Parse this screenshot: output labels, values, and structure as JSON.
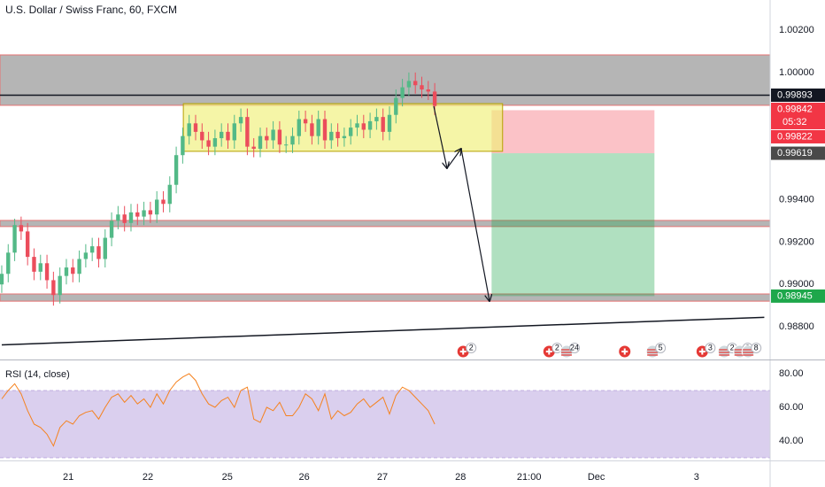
{
  "chart_data": {
    "type": "candlestick",
    "title": "U.S. Dollar / Swiss Franc, 60, FXCM",
    "xlim": [
      -0.27,
      118.9
    ],
    "xticks": [
      {
        "value": 10.3,
        "label": "21"
      },
      {
        "value": 22.6,
        "label": "22"
      },
      {
        "value": 34.9,
        "label": "25"
      },
      {
        "value": 46.8,
        "label": "26"
      },
      {
        "value": 58.9,
        "label": "27"
      },
      {
        "value": 71,
        "label": "28"
      },
      {
        "value": 81.6,
        "label": "21:00"
      },
      {
        "value": 92,
        "label": "Dec"
      },
      {
        "value": 107.5,
        "label": "3"
      }
    ],
    "ylim": [
      0.9865,
      1.00342
    ],
    "yticks": [
      {
        "value": 1.002,
        "label": "1.00200"
      },
      {
        "value": 1.0,
        "label": "1.00000"
      },
      {
        "value": 0.994,
        "label": "0.99400"
      },
      {
        "value": 0.992,
        "label": "0.99200"
      },
      {
        "value": 0.99,
        "label": "0.99000"
      },
      {
        "value": 0.988,
        "label": "0.98800"
      }
    ],
    "up_color": "#53b987",
    "down_color": "#eb4d5c",
    "open": [
      0.99,
      0.9905,
      0.9915,
      0.9928,
      0.9925,
      0.9913,
      0.9906,
      0.991,
      0.9902,
      0.9895,
      0.9904,
      0.9908,
      0.9905,
      0.9912,
      0.9915,
      0.9918,
      0.9912,
      0.9922,
      0.993,
      0.9933,
      0.9929,
      0.9934,
      0.9932,
      0.9935,
      0.9933,
      0.994,
      0.9938,
      0.9947,
      0.9961,
      0.997,
      0.9976,
      0.9972,
      0.9968,
      0.9965,
      0.9969,
      0.9972,
      0.9968,
      0.9976,
      0.9979,
      0.9965,
      0.9964,
      0.997,
      0.9968,
      0.9973,
      0.9966,
      0.9966,
      0.997,
      0.9978,
      0.9976,
      0.997,
      0.9978,
      0.9968,
      0.9972,
      0.9969,
      0.997,
      0.9974,
      0.9976,
      0.9973,
      0.9977,
      0.9979,
      0.9972,
      0.998,
      0.9988,
      0.9993,
      0.9996,
      0.9994,
      0.9992,
      0.9991
    ],
    "high": [
      0.9909,
      0.9919,
      0.9931,
      0.9932,
      0.9929,
      0.9917,
      0.9914,
      0.9914,
      0.9906,
      0.9908,
      0.9912,
      0.9912,
      0.9916,
      0.9919,
      0.9922,
      0.9922,
      0.9926,
      0.9934,
      0.9937,
      0.9937,
      0.9938,
      0.9938,
      0.9939,
      0.9939,
      0.9944,
      0.9944,
      0.9951,
      0.9965,
      0.9974,
      0.998,
      0.998,
      0.9976,
      0.9972,
      0.9973,
      0.9976,
      0.9976,
      0.998,
      0.9983,
      0.9983,
      0.9969,
      0.9974,
      0.9974,
      0.9977,
      0.9977,
      0.997,
      0.9974,
      0.9982,
      0.9982,
      0.998,
      0.9982,
      0.9982,
      0.9976,
      0.9976,
      0.9974,
      0.9978,
      0.998,
      0.998,
      0.9981,
      0.9983,
      0.9983,
      0.9984,
      0.9992,
      0.9997,
      1.0,
      1.0,
      0.9998,
      0.9996,
      0.9995
    ],
    "low": [
      0.9896,
      0.9901,
      0.9911,
      0.9921,
      0.9909,
      0.9902,
      0.9902,
      0.9898,
      0.989,
      0.9891,
      0.99,
      0.9901,
      0.9901,
      0.9908,
      0.9911,
      0.9908,
      0.9908,
      0.9918,
      0.9926,
      0.9925,
      0.9925,
      0.9928,
      0.9928,
      0.9929,
      0.9929,
      0.9934,
      0.9934,
      0.9943,
      0.9957,
      0.9966,
      0.9968,
      0.9964,
      0.9961,
      0.9961,
      0.9965,
      0.9964,
      0.9964,
      0.9972,
      0.9961,
      0.996,
      0.996,
      0.9964,
      0.9964,
      0.9962,
      0.9962,
      0.9962,
      0.9966,
      0.9972,
      0.9966,
      0.9966,
      0.9964,
      0.9964,
      0.9965,
      0.9965,
      0.9966,
      0.997,
      0.9969,
      0.9969,
      0.9973,
      0.9968,
      0.9968,
      0.9976,
      0.9984,
      0.9989,
      0.999,
      0.9988,
      0.9987,
      0.998
    ],
    "close": [
      0.9905,
      0.9915,
      0.9928,
      0.9925,
      0.9913,
      0.9906,
      0.991,
      0.9902,
      0.9895,
      0.9904,
      0.9908,
      0.9905,
      0.9912,
      0.9915,
      0.9918,
      0.9912,
      0.9922,
      0.993,
      0.9933,
      0.9929,
      0.9934,
      0.9932,
      0.9935,
      0.9933,
      0.994,
      0.9938,
      0.9947,
      0.9961,
      0.997,
      0.9976,
      0.9972,
      0.9968,
      0.9965,
      0.9969,
      0.9972,
      0.9968,
      0.9976,
      0.9979,
      0.9965,
      0.9964,
      0.997,
      0.9968,
      0.9973,
      0.9966,
      0.9966,
      0.997,
      0.9978,
      0.9976,
      0.997,
      0.9978,
      0.9968,
      0.9972,
      0.9969,
      0.997,
      0.9974,
      0.9976,
      0.9973,
      0.9977,
      0.9979,
      0.9972,
      0.998,
      0.9988,
      0.9993,
      0.9996,
      0.9994,
      0.9992,
      0.9991,
      0.99842
    ],
    "zones": [
      {
        "from": 1.00083,
        "to": 0.99845,
        "color": "rgba(120,120,120,0.55)"
      },
      {
        "from": 0.99302,
        "to": 0.99273,
        "color": "rgba(120,120,120,0.55)"
      },
      {
        "from": 0.98955,
        "to": 0.98921,
        "color": "rgba(120,120,120,0.55)"
      }
    ],
    "box": {
      "start": 28.1,
      "end": 77.5,
      "from": 0.99853,
      "to": 0.99628,
      "color": "rgba(240,240,120,0.65)"
    },
    "hline": 0.99893,
    "trendline": {
      "x": [
        0,
        118
      ],
      "y": [
        0.98715,
        0.98845
      ]
    },
    "position": {
      "start": 75.8,
      "end": 101,
      "stop": 0.99822,
      "entry": 0.99619,
      "target": 0.98945
    },
    "price_labels": [
      {
        "value": 0.99893,
        "color": "#131722"
      },
      {
        "value": 0.99842,
        "color": "#f23645",
        "countdown": "05:32"
      },
      {
        "value": 0.99822,
        "color": "#f23645"
      },
      {
        "value": 0.99619,
        "color": "#4a4a4a"
      },
      {
        "value": 0.98945,
        "color": "#1ea74b"
      }
    ],
    "events": [
      {
        "x": 71.4,
        "flag": "ch",
        "count": 2
      },
      {
        "x": 84.7,
        "flag": "ch",
        "count": 2
      },
      {
        "x": 87.4,
        "flag": "us",
        "count": 24
      },
      {
        "x": 96.4,
        "flag": "ch"
      },
      {
        "x": 100.7,
        "flag": "us",
        "count": 5
      },
      {
        "x": 108.4,
        "flag": "ch",
        "count": 3
      },
      {
        "x": 111.8,
        "flag": "us",
        "count": 2
      },
      {
        "x": 114.2,
        "flag": "us",
        "count": 2
      },
      {
        "x": 115.5,
        "flag": "us",
        "count": 8
      }
    ],
    "rsi": {
      "title": "RSI (14, close)",
      "color": "#f5821f",
      "ylim": [
        28.4,
        87.4
      ],
      "yticks": [
        {
          "value": 80,
          "label": "80.00"
        },
        {
          "value": 60,
          "label": "60.00"
        },
        {
          "value": 40,
          "label": "40.00"
        }
      ],
      "band": [
        30,
        70
      ],
      "band_color": "rgba(149,117,205,0.35)",
      "values": [
        65,
        70,
        74,
        68,
        58,
        50,
        48,
        44,
        37,
        48,
        52,
        50,
        55,
        57,
        58,
        53,
        60,
        66,
        68,
        63,
        67,
        62,
        65,
        60,
        68,
        62,
        70,
        75,
        78,
        80,
        76,
        68,
        62,
        60,
        64,
        66,
        60,
        70,
        72,
        53,
        51,
        60,
        58,
        63,
        55,
        55,
        60,
        68,
        65,
        58,
        68,
        53,
        58,
        55,
        57,
        62,
        65,
        60,
        63,
        66,
        56,
        67,
        72,
        70,
        66,
        62,
        58,
        50
      ]
    }
  }
}
